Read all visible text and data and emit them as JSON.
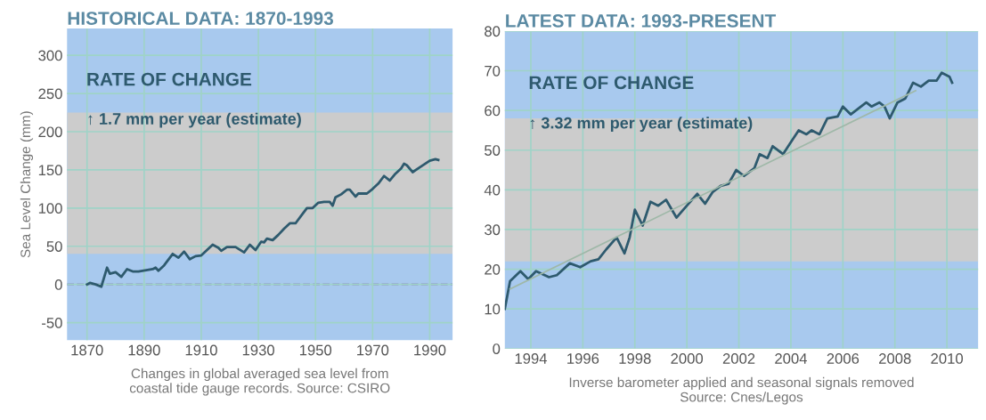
{
  "chart_data": [
    {
      "type": "line",
      "title": "HISTORICAL DATA: 1870-1993",
      "ylabel": "Sea Level Change (mm)",
      "annotations": [
        "RATE OF CHANGE",
        "↑ 1.7 mm per year (estimate)",
        "Changes in global averaged sea level from\ncoastal tide gauge records. Source: CSIRO"
      ],
      "series": [
        {
          "color": "#2e5a6e",
          "x": [
            1870,
            1871,
            1873,
            1875,
            1877,
            1878,
            1880,
            1882,
            1884,
            1886,
            1888,
            1893,
            1894,
            1895,
            1897,
            1900,
            1902,
            1904,
            1906,
            1908,
            1910,
            1912,
            1914,
            1916,
            1917,
            1919,
            1922,
            1925,
            1927,
            1929,
            1931,
            1932,
            1933,
            1935,
            1937,
            1939,
            1941,
            1943,
            1945,
            1947,
            1949,
            1951,
            1953,
            1955,
            1956,
            1957,
            1959,
            1961,
            1962,
            1964,
            1965,
            1968,
            1970,
            1972,
            1974,
            1976,
            1978,
            1980,
            1981,
            1982,
            1984,
            1986,
            1988,
            1990,
            1992,
            1993
          ],
          "values": [
            0,
            2,
            0,
            -3,
            22,
            14,
            16,
            10,
            20,
            17,
            17,
            20,
            22,
            18,
            25,
            40,
            35,
            43,
            33,
            37,
            38,
            45,
            52,
            48,
            44,
            49,
            49,
            42,
            52,
            45,
            56,
            55,
            60,
            58,
            65,
            73,
            80,
            80,
            90,
            100,
            100,
            107,
            108,
            108,
            103,
            114,
            118,
            124,
            124,
            115,
            119,
            119,
            125,
            132,
            142,
            136,
            145,
            152,
            158,
            156,
            147,
            152,
            157,
            162,
            164,
            163
          ]
        }
      ],
      "xlim": [
        1863,
        1998
      ],
      "xticks": [
        1870,
        1890,
        1910,
        1930,
        1950,
        1970,
        1990
      ],
      "ylim": [
        -73,
        335
      ],
      "yticks": [
        -50,
        0,
        50,
        100,
        150,
        200,
        250,
        300
      ],
      "ref_lines": [
        {
          "axis": "y",
          "value": 0,
          "color": "#8a86c8",
          "line_style": "dashed"
        }
      ],
      "bands": [
        {
          "axis": "y",
          "from": 40,
          "to": 225,
          "color": "#cccccc"
        }
      ],
      "grid": true
    },
    {
      "type": "line",
      "title": "LATEST DATA: 1993-PRESENT",
      "annotations": [
        "RATE OF CHANGE",
        "↑ 3.32 mm per year (estimate)",
        "Inverse barometer applied and seasonal signals removed\nSource: Cnes/Legos"
      ],
      "series": [
        {
          "color": "#2e5a6e",
          "x": [
            1993.0,
            1993.2,
            1993.6,
            1993.9,
            1994.2,
            1994.7,
            1995.0,
            1995.5,
            1995.9,
            1996.3,
            1996.6,
            1996.9,
            1997.3,
            1997.6,
            1997.8,
            1998.0,
            1998.3,
            1998.6,
            1998.9,
            1999.2,
            1999.6,
            2000.0,
            2000.4,
            2000.7,
            2001.0,
            2001.3,
            2001.6,
            2001.9,
            2002.2,
            2002.6,
            2002.8,
            2003.1,
            2003.3,
            2003.7,
            2004.0,
            2004.3,
            2004.6,
            2004.8,
            2005.1,
            2005.4,
            2005.8,
            2006.0,
            2006.3,
            2006.6,
            2006.9,
            2007.1,
            2007.4,
            2007.6,
            2007.8,
            2008.1,
            2008.4,
            2008.7,
            2009.0,
            2009.3,
            2009.6,
            2009.8,
            2010.1,
            2010.2
          ],
          "values": [
            10,
            17,
            19.5,
            17.5,
            19.5,
            18,
            18.5,
            21.5,
            20.5,
            22,
            22.5,
            25,
            28,
            24,
            28,
            35,
            31,
            37,
            36,
            37.5,
            33,
            36,
            39,
            36.5,
            39.5,
            41,
            41.5,
            45,
            43.5,
            45.5,
            49,
            48,
            51,
            49,
            52,
            55,
            54,
            55,
            54,
            58,
            58.5,
            61,
            59,
            60.5,
            62,
            61,
            62,
            61,
            58,
            62,
            63,
            67,
            66,
            67.5,
            67.5,
            69.5,
            68.5,
            67
          ]
        },
        {
          "type": "line",
          "color": "#9fb8a8",
          "x": [
            1993.2,
            2008.8
          ],
          "values": [
            15,
            65
          ]
        }
      ],
      "xlim": [
        1993,
        2011.2
      ],
      "xticks": [
        1994,
        1996,
        1998,
        2000,
        2002,
        2004,
        2006,
        2008,
        2010
      ],
      "ylim": [
        0,
        80
      ],
      "yticks": [
        0,
        10,
        20,
        30,
        40,
        50,
        60,
        70,
        80
      ],
      "bands": [
        {
          "axis": "y",
          "from": 22,
          "to": 58,
          "color": "#cccccc"
        }
      ],
      "grid": true
    }
  ]
}
